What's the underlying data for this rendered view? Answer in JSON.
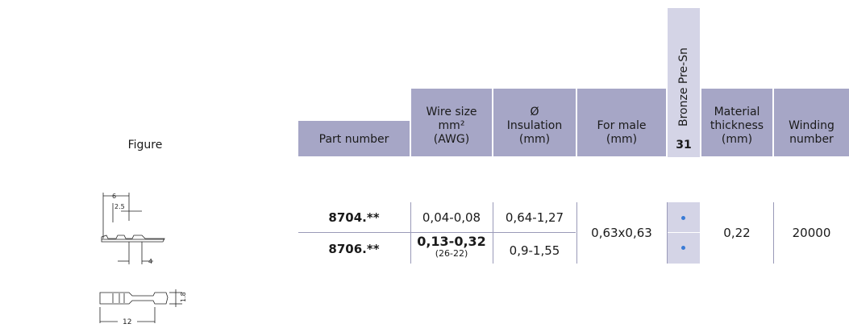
{
  "headers": {
    "figure": "Figure",
    "part_number": "Part number",
    "wire_size_l1": "Wire size",
    "wire_size_l2": "mm²",
    "wire_size_l3": "(AWG)",
    "insulation_l1": "Ø",
    "insulation_l2": "Insulation",
    "insulation_l3": "(mm)",
    "for_male_l1": "For male",
    "for_male_l2": "(mm)",
    "material_name": "Bronze Pre-Sn",
    "material_code": "31",
    "thickness_l1": "Material",
    "thickness_l2": "thickness",
    "thickness_l3": "(mm)",
    "winding_l1": "Winding",
    "winding_l2": "number"
  },
  "rows": [
    {
      "part_number": "8704.**",
      "wire_size": "0,04-0,08",
      "insulation": "0,64-1,27"
    },
    {
      "part_number": "8706.**",
      "wire_size": "0,13-0,32",
      "wire_awg": "(26-22)",
      "insulation": "0,9-1,55"
    }
  ],
  "shared": {
    "for_male": "0,63x0,63",
    "thickness": "0,22",
    "winding": "20000"
  },
  "drawing": {
    "dim_top": "6",
    "dim_mid": "2.5",
    "dim_bottom": "4",
    "dim_side_height": "1.8",
    "dim_length": "12"
  }
}
